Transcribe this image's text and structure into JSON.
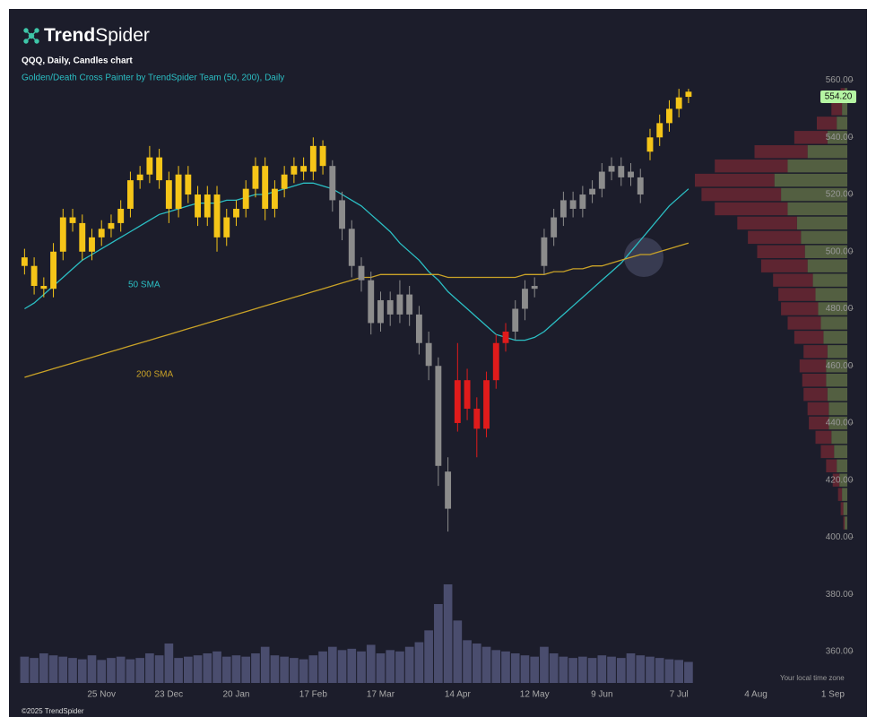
{
  "header": {
    "logo_bold": "Trend",
    "logo_light": "Spider"
  },
  "chart_data": {
    "type": "candlestick",
    "title": "QQQ, Daily, Candles chart",
    "subtitle": "Golden/Death Cross Painter by TrendSpider Team (50, 200), Daily",
    "categories": [
      null,
      null,
      null,
      null,
      null,
      null,
      null,
      null,
      "25 Nov",
      null,
      null,
      null,
      null,
      null,
      null,
      "23 Dec",
      null,
      null,
      null,
      null,
      null,
      null,
      "20 Jan",
      null,
      null,
      null,
      null,
      null,
      null,
      null,
      "17 Feb",
      null,
      null,
      null,
      null,
      null,
      null,
      "17 Mar",
      null,
      null,
      null,
      null,
      null,
      null,
      null,
      "14 Apr",
      null,
      null,
      null,
      null,
      null,
      null,
      null,
      "12 May",
      null,
      null,
      null,
      null,
      null,
      null,
      "9 Jun",
      null,
      null,
      null,
      null,
      null,
      null,
      null,
      "7 Jul",
      null,
      null,
      null,
      null,
      null,
      null,
      null,
      "4 Aug",
      null,
      null,
      null,
      null,
      null,
      null,
      null,
      "1 Sep",
      null
    ],
    "open": [
      498,
      495,
      488,
      487,
      500,
      512,
      510,
      500,
      505,
      508,
      510,
      515,
      525,
      527,
      533,
      525,
      515,
      527,
      520,
      512,
      520,
      505,
      512,
      515,
      522,
      530,
      515,
      522,
      527,
      530,
      528,
      537,
      530,
      518,
      508,
      495,
      490,
      475,
      483,
      478,
      485,
      478,
      468,
      460,
      410,
      440,
      455,
      445,
      438,
      455,
      468,
      472,
      480,
      487,
      495,
      505,
      512,
      518,
      515,
      520,
      522,
      528,
      530,
      526,
      520,
      535,
      540,
      545,
      550,
      556,
      null,
      null,
      null,
      null,
      null,
      null,
      null,
      null,
      null,
      null,
      null,
      null,
      null,
      null,
      null,
      null
    ],
    "high": [
      501,
      498,
      491,
      503,
      515,
      515,
      513,
      508,
      511,
      513,
      518,
      528,
      530,
      537,
      536,
      528,
      530,
      530,
      523,
      523,
      523,
      515,
      518,
      525,
      533,
      533,
      525,
      530,
      533,
      533,
      540,
      539,
      532,
      521,
      511,
      498,
      493,
      486,
      486,
      490,
      488,
      481,
      472,
      463,
      428,
      468,
      459,
      449,
      458,
      471,
      475,
      483,
      490,
      491,
      508,
      515,
      521,
      521,
      523,
      525,
      531,
      533,
      533,
      531,
      529,
      543,
      548,
      553,
      557,
      557,
      null,
      null,
      null,
      null,
      null,
      null,
      null,
      null,
      null,
      null,
      null,
      null,
      null,
      null,
      null,
      null
    ],
    "low": [
      492,
      485,
      484,
      484,
      497,
      507,
      497,
      497,
      502,
      505,
      507,
      512,
      522,
      524,
      522,
      510,
      512,
      517,
      509,
      509,
      500,
      502,
      509,
      512,
      519,
      511,
      512,
      519,
      524,
      525,
      525,
      527,
      514,
      504,
      491,
      486,
      471,
      472,
      474,
      475,
      474,
      464,
      455,
      418,
      402,
      437,
      441,
      428,
      435,
      452,
      465,
      469,
      476,
      484,
      492,
      502,
      509,
      512,
      512,
      517,
      519,
      525,
      523,
      523,
      517,
      532,
      537,
      542,
      547,
      552,
      null,
      null,
      null,
      null,
      null,
      null,
      null,
      null,
      null,
      null,
      null,
      null,
      null,
      null,
      null,
      null
    ],
    "close": [
      495,
      488,
      487,
      500,
      512,
      510,
      500,
      505,
      508,
      510,
      515,
      525,
      527,
      533,
      525,
      515,
      527,
      520,
      512,
      520,
      505,
      512,
      515,
      522,
      530,
      515,
      522,
      527,
      530,
      528,
      537,
      530,
      518,
      508,
      495,
      490,
      475,
      483,
      478,
      485,
      478,
      468,
      460,
      425,
      423,
      455,
      445,
      438,
      455,
      468,
      472,
      480,
      487,
      488,
      505,
      512,
      518,
      515,
      520,
      522,
      528,
      530,
      526,
      528,
      526,
      540,
      545,
      550,
      554,
      554.2,
      null,
      null,
      null,
      null,
      null,
      null,
      null,
      null,
      null,
      null,
      null,
      null,
      null,
      null,
      null,
      null
    ],
    "colors": [
      "#f5c518",
      "#f5c518",
      "#f5c518",
      "#f5c518",
      "#f5c518",
      "#f5c518",
      "#f5c518",
      "#f5c518",
      "#f5c518",
      "#f5c518",
      "#f5c518",
      "#f5c518",
      "#f5c518",
      "#f5c518",
      "#f5c518",
      "#f5c518",
      "#f5c518",
      "#f5c518",
      "#f5c518",
      "#f5c518",
      "#f5c518",
      "#f5c518",
      "#f5c518",
      "#f5c518",
      "#f5c518",
      "#f5c518",
      "#f5c518",
      "#f5c518",
      "#f5c518",
      "#f5c518",
      "#f5c518",
      "#f5c518",
      "#8c8c8c",
      "#8c8c8c",
      "#8c8c8c",
      "#8c8c8c",
      "#8c8c8c",
      "#8c8c8c",
      "#8c8c8c",
      "#8c8c8c",
      "#8c8c8c",
      "#8c8c8c",
      "#8c8c8c",
      "#8c8c8c",
      "#8c8c8c",
      "#e01b1b",
      "#e01b1b",
      "#e01b1b",
      "#e01b1b",
      "#e01b1b",
      "#e01b1b",
      "#8c8c8c",
      "#8c8c8c",
      "#8c8c8c",
      "#8c8c8c",
      "#8c8c8c",
      "#8c8c8c",
      "#8c8c8c",
      "#8c8c8c",
      "#8c8c8c",
      "#8c8c8c",
      "#8c8c8c",
      "#8c8c8c",
      "#8c8c8c",
      "#8c8c8c",
      "#f5c518",
      "#f5c518",
      "#f5c518",
      "#f5c518",
      "#f5c518",
      null,
      null,
      null,
      null,
      null,
      null,
      null,
      null,
      null,
      null,
      null,
      null,
      null,
      null,
      null,
      null
    ],
    "volume": [
      40,
      38,
      45,
      42,
      40,
      38,
      36,
      42,
      35,
      38,
      40,
      36,
      38,
      45,
      42,
      60,
      38,
      40,
      42,
      45,
      48,
      40,
      42,
      40,
      45,
      55,
      42,
      40,
      38,
      36,
      42,
      48,
      55,
      50,
      52,
      48,
      58,
      45,
      50,
      48,
      55,
      62,
      80,
      120,
      150,
      95,
      65,
      60,
      55,
      50,
      48,
      45,
      42,
      40,
      55,
      45,
      40,
      38,
      40,
      38,
      42,
      40,
      38,
      45,
      42,
      40,
      38,
      36,
      35,
      32,
      null,
      null,
      null,
      null,
      null,
      null,
      null,
      null,
      null,
      null,
      null,
      null,
      null,
      null,
      null,
      null
    ],
    "volume_color": "#4a4d6e",
    "series": [
      {
        "name": "50 SMA",
        "color": "#2bbfc4",
        "values": [
          480,
          482,
          485,
          488,
          491,
          494,
          497,
          499,
          501,
          503,
          505,
          507,
          509,
          511,
          513,
          514,
          515,
          516,
          517,
          517,
          517,
          518,
          518,
          519,
          520,
          520,
          521,
          522,
          523,
          524,
          524,
          523,
          522,
          520,
          518,
          516,
          513,
          510,
          507,
          503,
          500,
          497,
          493,
          490,
          486,
          483,
          480,
          477,
          474,
          471,
          470,
          469,
          469,
          470,
          472,
          475,
          478,
          481,
          484,
          487,
          490,
          493,
          496,
          500,
          504,
          508,
          512,
          516,
          519,
          522,
          null,
          null,
          null,
          null,
          null,
          null,
          null,
          null,
          null,
          null,
          null,
          null,
          null,
          null,
          null,
          null
        ]
      },
      {
        "name": "200 SMA",
        "color": "#c9a227",
        "values": [
          456,
          457,
          458,
          459,
          460,
          461,
          462,
          463,
          464,
          465,
          466,
          467,
          468,
          469,
          470,
          471,
          472,
          473,
          474,
          475,
          476,
          477,
          478,
          479,
          480,
          481,
          482,
          483,
          484,
          485,
          486,
          487,
          488,
          489,
          490,
          491,
          491,
          492,
          492,
          492,
          492,
          492,
          492,
          492,
          491,
          491,
          491,
          491,
          491,
          491,
          491,
          491,
          492,
          492,
          492,
          493,
          493,
          494,
          494,
          495,
          495,
          496,
          497,
          498,
          499,
          499,
          500,
          501,
          502,
          503,
          null,
          null,
          null,
          null,
          null,
          null,
          null,
          null,
          null,
          null,
          null,
          null,
          null,
          null,
          null,
          null
        ]
      }
    ],
    "ylim": [
      349,
      563
    ],
    "yticks": [
      {
        "value": 360,
        "label": "360.00"
      },
      {
        "value": 380,
        "label": "380.00"
      },
      {
        "value": 400,
        "label": "400.00"
      },
      {
        "value": 420,
        "label": "420.00"
      },
      {
        "value": 440,
        "label": "440.00"
      },
      {
        "value": 460,
        "label": "460.00"
      },
      {
        "value": 480,
        "label": "480.00"
      },
      {
        "value": 500,
        "label": "500.00"
      },
      {
        "value": 520,
        "label": "520.00"
      },
      {
        "value": 540,
        "label": "540.00"
      },
      {
        "value": 560,
        "label": "560.00"
      }
    ],
    "last_label": "554.20",
    "volume_profile": {
      "levels": [
        405,
        410,
        415,
        420,
        425,
        430,
        435,
        440,
        445,
        450,
        455,
        460,
        465,
        470,
        475,
        480,
        485,
        490,
        495,
        500,
        505,
        510,
        515,
        520,
        525,
        530,
        535,
        540,
        545,
        550,
        555
      ],
      "buy": [
        2,
        3,
        4,
        6,
        8,
        10,
        12,
        14,
        14,
        15,
        16,
        16,
        15,
        18,
        20,
        22,
        24,
        26,
        30,
        32,
        35,
        38,
        45,
        50,
        55,
        45,
        30,
        15,
        8,
        4,
        2
      ],
      "sell": [
        1,
        2,
        3,
        5,
        8,
        10,
        12,
        15,
        16,
        18,
        18,
        20,
        18,
        22,
        25,
        28,
        28,
        30,
        35,
        36,
        40,
        45,
        55,
        60,
        60,
        55,
        40,
        25,
        15,
        8,
        3
      ],
      "buy_color": "#5d6b45",
      "sell_color": "#6a2733"
    },
    "timezone_note": "Your local time zone",
    "copyright": "©2025 TrendSpider"
  }
}
